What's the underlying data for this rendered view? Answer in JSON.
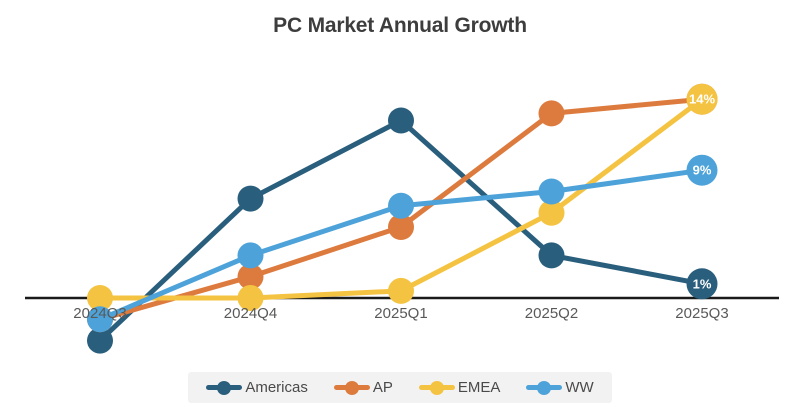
{
  "title": "PC Market Annual Growth",
  "chart_data": {
    "type": "line",
    "categories": [
      "2024Q3",
      "2024Q4",
      "2025Q1",
      "2025Q2",
      "2025Q3"
    ],
    "series": [
      {
        "name": "Americas",
        "color": "#2a5e7d",
        "values": [
          -3,
          7,
          12.5,
          3,
          1
        ],
        "end_label": "1%",
        "end_label_visible": true
      },
      {
        "name": "AP",
        "color": "#dd7b3e",
        "values": [
          -1.5,
          1.5,
          5,
          13,
          14
        ],
        "end_label": "14%",
        "end_label_visible": false
      },
      {
        "name": "EMEA",
        "color": "#f5c342",
        "values": [
          0,
          0,
          0.5,
          6,
          14
        ],
        "end_label": "14%",
        "end_label_visible": true
      },
      {
        "name": "WW",
        "color": "#4da3d9",
        "values": [
          -1.5,
          3,
          6.5,
          7.5,
          9
        ],
        "end_label": "9%",
        "end_label_visible": true
      }
    ],
    "xlabel": "",
    "ylabel": "",
    "ylim": [
      -4,
      16
    ],
    "unit": "percent",
    "grid": false,
    "y_axis_visible": false,
    "legend_position": "bottom"
  },
  "style": {
    "title_color": "#3d3d3d",
    "tick_color": "#595959",
    "axis_color": "#1a1a1a",
    "end_label_text_color": "#ffffff",
    "legend_text_color": "#4a4a4a",
    "legend_bg_color": "#f2f2f2"
  }
}
